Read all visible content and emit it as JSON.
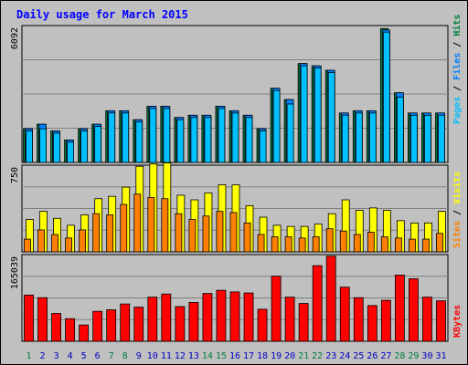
{
  "title": "Daily usage for March 2015",
  "colors": {
    "background": "#c0c0c0",
    "title": "#0000ff",
    "hits": "#008040",
    "files": "#0080ff",
    "pages": "#00c0ff",
    "visits": "#ffff00",
    "sites": "#ff8000",
    "kbytes": "#ff0000",
    "weekday_label": "#0000c0",
    "weekend_label": "#008040"
  },
  "chart_data": [
    {
      "type": "bar",
      "name": "Pages / Files / Hits",
      "legend": [
        "Pages",
        "Files",
        "Hits"
      ],
      "ymax_label": "6092",
      "ylim": [
        0,
        6092
      ],
      "categories": [
        "1",
        "2",
        "3",
        "4",
        "5",
        "6",
        "7",
        "8",
        "9",
        "10",
        "11",
        "12",
        "13",
        "14",
        "15",
        "16",
        "17",
        "18",
        "19",
        "20",
        "21",
        "22",
        "23",
        "24",
        "25",
        "26",
        "27",
        "28",
        "29",
        "30",
        "31"
      ],
      "series": [
        {
          "name": "Hits",
          "values": [
            1500,
            1700,
            1400,
            1000,
            1500,
            1700,
            2300,
            2300,
            1900,
            2500,
            2500,
            2000,
            2100,
            2100,
            2500,
            2300,
            2100,
            1500,
            3300,
            2800,
            4400,
            4300,
            4100,
            2200,
            2300,
            2300,
            5960,
            3100,
            2200,
            2200,
            2200
          ]
        },
        {
          "name": "Files",
          "values": [
            1500,
            1700,
            1400,
            1000,
            1500,
            1700,
            2300,
            2300,
            1900,
            2500,
            2500,
            2000,
            2100,
            2100,
            2500,
            2300,
            2100,
            1500,
            3300,
            2800,
            4400,
            4300,
            4100,
            2200,
            2300,
            2300,
            5900,
            3100,
            2200,
            2200,
            2200
          ]
        },
        {
          "name": "Pages",
          "values": [
            1400,
            1500,
            1300,
            900,
            1400,
            1600,
            2200,
            2200,
            1800,
            2400,
            2400,
            1900,
            2000,
            2000,
            2400,
            2200,
            2000,
            1400,
            3200,
            2600,
            4300,
            4200,
            4000,
            2100,
            2200,
            2200,
            5800,
            2900,
            2100,
            2100,
            2100
          ]
        }
      ]
    },
    {
      "type": "bar",
      "name": "Sites / Visits",
      "legend": [
        "Sites",
        "Visits"
      ],
      "ymax_label": "750",
      "ylim": [
        0,
        750
      ],
      "categories": [
        "1",
        "2",
        "3",
        "4",
        "5",
        "6",
        "7",
        "8",
        "9",
        "10",
        "11",
        "12",
        "13",
        "14",
        "15",
        "16",
        "17",
        "18",
        "19",
        "20",
        "21",
        "22",
        "23",
        "24",
        "25",
        "26",
        "27",
        "28",
        "29",
        "30",
        "31"
      ],
      "series": [
        {
          "name": "Visits",
          "values": [
            280,
            350,
            290,
            230,
            320,
            460,
            480,
            560,
            740,
            760,
            770,
            490,
            450,
            510,
            580,
            580,
            400,
            300,
            230,
            220,
            220,
            240,
            330,
            450,
            360,
            380,
            360,
            270,
            250,
            250,
            350
          ]
        },
        {
          "name": "Sites",
          "values": [
            110,
            190,
            150,
            120,
            190,
            330,
            320,
            410,
            500,
            470,
            460,
            330,
            280,
            310,
            350,
            340,
            250,
            150,
            130,
            130,
            120,
            130,
            200,
            180,
            150,
            170,
            130,
            120,
            110,
            110,
            160
          ]
        }
      ]
    },
    {
      "type": "bar",
      "name": "KBytes",
      "legend": [
        "KBytes"
      ],
      "ymax_label": "165039",
      "ylim": [
        0,
        165039
      ],
      "categories": [
        "1",
        "2",
        "3",
        "4",
        "5",
        "6",
        "7",
        "8",
        "9",
        "10",
        "11",
        "12",
        "13",
        "14",
        "15",
        "16",
        "17",
        "18",
        "19",
        "20",
        "21",
        "22",
        "23",
        "24",
        "25",
        "26",
        "27",
        "28",
        "29",
        "30",
        "31"
      ],
      "series": [
        {
          "name": "KBytes",
          "values": [
            88000,
            83000,
            53000,
            43000,
            31000,
            57000,
            60000,
            71000,
            65000,
            84000,
            90000,
            66000,
            74000,
            91000,
            97000,
            94000,
            92000,
            61000,
            124000,
            84000,
            72000,
            144000,
            162000,
            103000,
            83000,
            68000,
            78000,
            126000,
            119000,
            84000,
            77000
          ]
        }
      ]
    }
  ],
  "x_axis": {
    "labels": [
      "1",
      "2",
      "3",
      "4",
      "5",
      "6",
      "7",
      "8",
      "9",
      "10",
      "11",
      "12",
      "13",
      "14",
      "15",
      "16",
      "17",
      "18",
      "19",
      "20",
      "21",
      "22",
      "23",
      "24",
      "25",
      "26",
      "27",
      "28",
      "29",
      "30",
      "31"
    ],
    "weekend_days": [
      1,
      7,
      8,
      14,
      15,
      21,
      22,
      28,
      29
    ]
  }
}
